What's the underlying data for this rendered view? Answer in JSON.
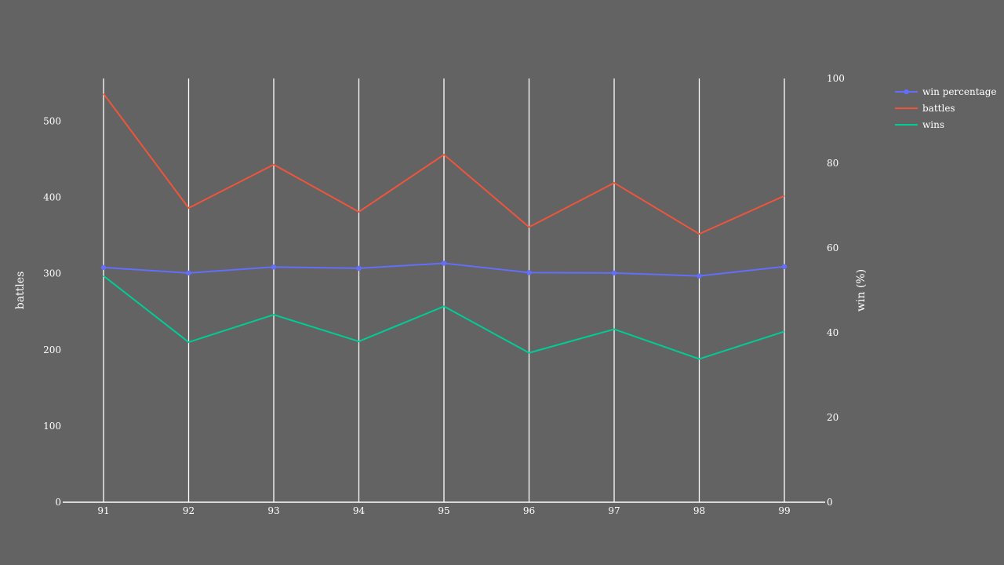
{
  "chart_data": {
    "type": "line",
    "x": [
      91,
      92,
      93,
      94,
      95,
      96,
      97,
      98,
      99
    ],
    "ylabel": "battles",
    "y2label": "win (%)",
    "ylim": [
      0,
      556
    ],
    "y2lim": [
      0,
      100
    ],
    "yticks": [
      0,
      100,
      200,
      300,
      400,
      500
    ],
    "y2ticks": [
      0,
      20,
      40,
      60,
      80,
      100
    ],
    "grid": "vertical",
    "legend_position": "top-right",
    "series": [
      {
        "name": "win percentage",
        "axis": "right",
        "color": "#636efa",
        "markers": true,
        "values": [
          55.4,
          54.1,
          55.5,
          55.2,
          56.4,
          54.2,
          54.1,
          53.4,
          55.6
        ]
      },
      {
        "name": "battles",
        "axis": "left",
        "color": "#ef553b",
        "markers": false,
        "values": [
          536,
          386,
          443,
          381,
          456,
          361,
          419,
          352,
          402
        ]
      },
      {
        "name": "wins",
        "axis": "left",
        "color": "#00cc96",
        "markers": false,
        "values": [
          297,
          210,
          246,
          211,
          257,
          196,
          227,
          188,
          224
        ]
      }
    ]
  }
}
